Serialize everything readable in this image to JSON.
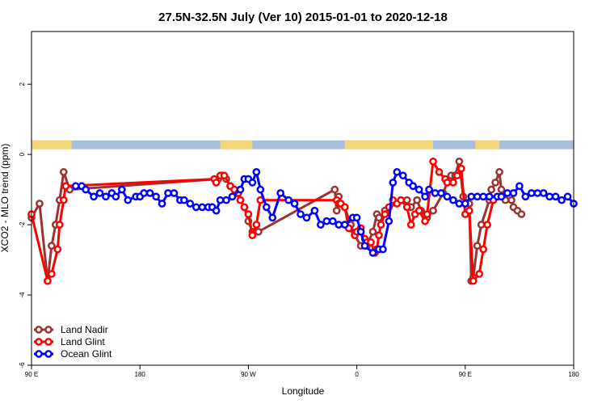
{
  "chart_data": {
    "type": "line",
    "title": "27.5N-32.5N July (Ver 10)   2015-01-01 to 2020-12-18",
    "xlabel": "Longitude",
    "ylabel": "XCO2 - MLO trend (ppm)",
    "xlim": [
      -90,
      180
    ],
    "ylim": [
      -6,
      3.5
    ],
    "x_ticks": [
      {
        "value": -90,
        "label": "90 E"
      },
      {
        "value": -36,
        "label": "180"
      },
      {
        "value": 18,
        "label": "90 W"
      },
      {
        "value": 72,
        "label": "0"
      },
      {
        "value": 126,
        "label": "90 E"
      },
      {
        "value": 180,
        "label": "180"
      }
    ],
    "y_ticks": [
      {
        "value": -6,
        "label": "-6"
      },
      {
        "value": -4,
        "label": "-4"
      },
      {
        "value": -2,
        "label": "-2"
      },
      {
        "value": 0,
        "label": "0"
      },
      {
        "value": 2,
        "label": "2"
      }
    ],
    "grid": false,
    "legend_position": "bottom-left",
    "land_ocean_strip": {
      "y_range": [
        0.15,
        0.4
      ],
      "land_color": "#f5d57a",
      "ocean_color": "#a7bfdc",
      "land_x_ranges": [
        [
          -90,
          -70
        ],
        [
          4,
          20
        ],
        [
          66,
          110
        ],
        [
          131,
          143
        ]
      ]
    },
    "series": [
      {
        "name": "Land Nadir",
        "color": "#9b3333",
        "x": [
          -90,
          -86,
          -82,
          -80,
          -78,
          -76,
          -74,
          -71,
          3,
          5,
          7,
          9,
          12,
          14,
          16,
          18,
          20,
          23,
          61,
          62,
          63,
          64,
          66,
          69,
          71,
          74,
          77,
          80,
          82,
          83,
          86,
          94,
          97,
          99,
          102,
          104,
          107,
          110,
          115,
          117,
          119,
          121,
          123,
          125,
          128,
          129,
          130,
          132,
          134,
          138,
          139,
          141,
          143,
          144,
          146,
          149,
          150,
          152,
          154
        ],
        "values": [
          -1.8,
          -1.4,
          -3.6,
          -2.6,
          -2.0,
          -1.3,
          -0.5,
          -1.0,
          -0.7,
          -0.6,
          -0.7,
          -0.9,
          -1.1,
          -1.3,
          -1.5,
          -1.9,
          -2.2,
          -2.2,
          -1.0,
          -1.6,
          -1.2,
          -1.4,
          -1.5,
          -2.0,
          -2.3,
          -2.6,
          -2.6,
          -2.2,
          -1.7,
          -1.8,
          -1.6,
          -1.3,
          -1.3,
          -1.5,
          -1.3,
          -1.6,
          -1.8,
          -1.6,
          -1.1,
          -0.8,
          -0.6,
          -0.6,
          -0.2,
          -1.2,
          -1.4,
          -3.6,
          -3.5,
          -2.6,
          -2.0,
          -1.3,
          -1.0,
          -0.8,
          -0.5,
          -1.0,
          -1.3,
          -1.3,
          -1.5,
          -1.6,
          -1.7
        ]
      },
      {
        "name": "Land Glint",
        "color": "#ff0000",
        "x": [
          -90,
          -82,
          -80,
          -77,
          -76,
          -74,
          -73,
          1,
          2,
          4,
          6,
          9,
          11,
          13,
          14,
          16,
          18,
          20,
          22,
          24,
          62,
          63,
          64,
          66,
          68,
          71,
          72,
          74,
          76,
          77,
          79,
          81,
          82,
          83,
          84,
          86,
          88,
          90,
          92,
          94,
          97,
          99,
          101,
          103,
          106,
          107,
          110,
          113,
          116,
          117,
          120,
          122,
          124,
          126,
          128,
          130,
          133,
          135,
          137,
          140
        ],
        "values": [
          -1.7,
          -3.6,
          -3.4,
          -2.7,
          -2.0,
          -1.3,
          -0.9,
          -0.7,
          -0.8,
          -0.6,
          -0.6,
          -0.9,
          -1.0,
          -1.1,
          -1.3,
          -1.5,
          -1.7,
          -2.3,
          -2.0,
          -1.3,
          -1.3,
          -1.4,
          -1.4,
          -1.5,
          -2.1,
          -2.3,
          -2.2,
          -2.1,
          -2.4,
          -2.5,
          -2.5,
          -2.8,
          -2.7,
          -2.3,
          -2.0,
          -1.7,
          -1.5,
          -1.3,
          -1.4,
          -1.3,
          -1.5,
          -2.0,
          -1.7,
          -1.6,
          -1.9,
          -1.7,
          -0.2,
          -0.5,
          -0.7,
          -0.8,
          -0.8,
          -0.6,
          -0.4,
          -1.7,
          -1.6,
          -3.6,
          -3.4,
          -2.7,
          -2.0,
          -1.3
        ]
      },
      {
        "name": "Ocean Glint",
        "color": "#0000ff",
        "x": [
          -68,
          -65,
          -63,
          -59,
          -56,
          -53,
          -50,
          -48,
          -45,
          -42,
          -38,
          -36,
          -34,
          -31,
          -28,
          -25,
          -22,
          -19,
          -16,
          -14,
          -11,
          -8,
          -5,
          -2,
          0,
          2,
          4,
          7,
          10,
          14,
          16,
          18,
          20,
          22,
          24,
          27,
          30,
          34,
          38,
          41,
          44,
          47,
          51,
          54,
          57,
          60,
          63,
          66,
          70,
          72,
          74,
          76,
          80,
          83,
          85,
          88,
          90,
          92,
          95,
          98,
          100,
          103,
          106,
          108,
          111,
          114,
          117,
          120,
          123,
          126,
          129,
          132,
          135,
          138,
          142,
          144,
          147,
          150,
          153,
          156,
          159,
          162,
          165,
          168,
          171,
          174,
          177,
          180
        ],
        "values": [
          -0.9,
          -0.9,
          -1.0,
          -1.2,
          -1.1,
          -1.2,
          -1.1,
          -1.2,
          -1.0,
          -1.3,
          -1.2,
          -1.2,
          -1.1,
          -1.1,
          -1.2,
          -1.4,
          -1.1,
          -1.1,
          -1.3,
          -1.3,
          -1.4,
          -1.5,
          -1.5,
          -1.5,
          -1.5,
          -1.6,
          -1.3,
          -1.3,
          -1.2,
          -1.0,
          -0.7,
          -0.7,
          -0.8,
          -0.5,
          -1.0,
          -1.5,
          -1.8,
          -1.1,
          -1.3,
          -1.4,
          -1.7,
          -1.8,
          -1.6,
          -2.0,
          -1.9,
          -1.9,
          -2.0,
          -2.0,
          -1.8,
          -1.8,
          -2.2,
          -2.6,
          -2.8,
          -2.7,
          -2.7,
          -1.9,
          -0.8,
          -0.5,
          -0.6,
          -0.8,
          -0.9,
          -1.0,
          -1.2,
          -1.0,
          -1.1,
          -1.1,
          -1.2,
          -1.3,
          -1.4,
          -1.4,
          -1.2,
          -1.2,
          -1.2,
          -1.2,
          -1.2,
          -1.2,
          -1.1,
          -1.1,
          -0.9,
          -1.2,
          -1.1,
          -1.1,
          -1.1,
          -1.2,
          -1.2,
          -1.3,
          -1.2,
          -1.4
        ]
      }
    ]
  }
}
